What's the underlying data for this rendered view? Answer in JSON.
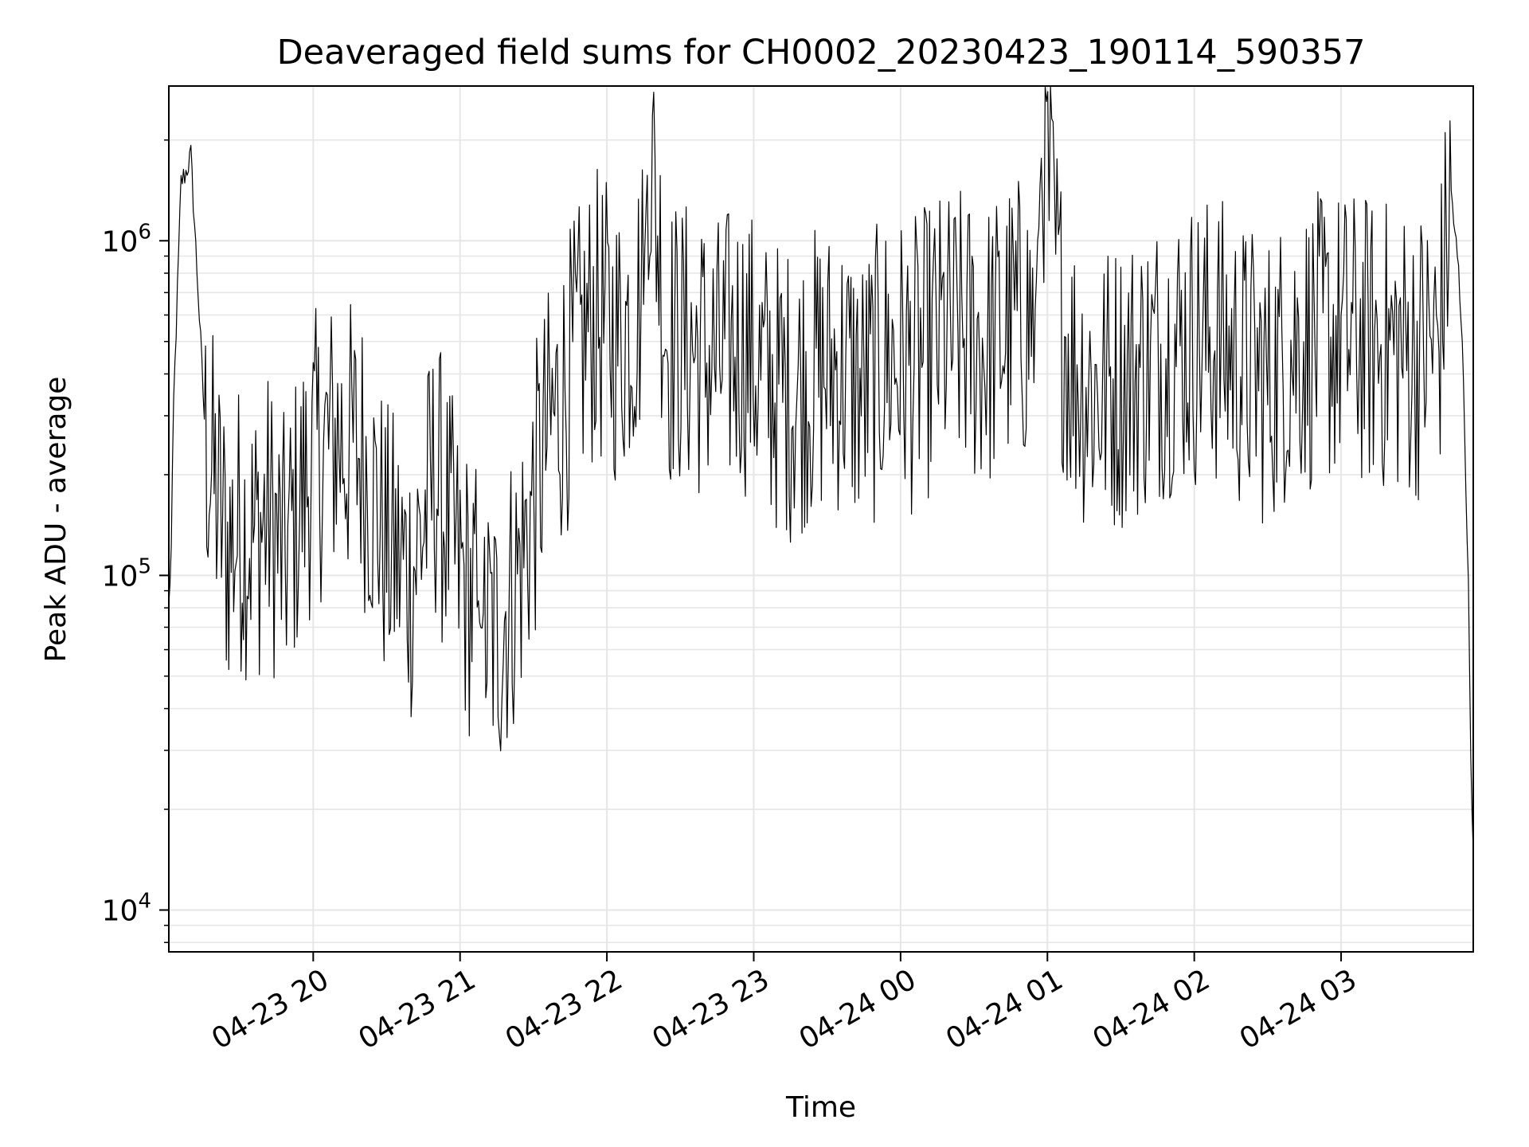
{
  "chart_data": {
    "type": "line",
    "title": "Deaveraged field sums for CH0002_20230423_190114_590357",
    "xlabel": "Time",
    "ylabel": "Peak ADU - average",
    "yscale": "log",
    "ylim": [
      7500,
      2900000
    ],
    "xlim": [
      "2023-04-23 19:01",
      "2023-04-24 03:54"
    ],
    "grid": true,
    "line_color": "#000000",
    "grid_color": "#e6e6e6",
    "x_ticks": [
      {
        "label": "04-23 20",
        "value": "2023-04-23 20:00"
      },
      {
        "label": "04-23 21",
        "value": "2023-04-23 21:00"
      },
      {
        "label": "04-23 22",
        "value": "2023-04-23 22:00"
      },
      {
        "label": "04-23 23",
        "value": "2023-04-23 23:00"
      },
      {
        "label": "04-24 00",
        "value": "2023-04-24 00:00"
      },
      {
        "label": "04-24 01",
        "value": "2023-04-24 01:00"
      },
      {
        "label": "04-24 02",
        "value": "2023-04-24 02:00"
      },
      {
        "label": "04-24 03",
        "value": "2023-04-24 03:00"
      }
    ],
    "y_ticks": [
      {
        "mantissa": "10",
        "exponent": "4",
        "value": 10000
      },
      {
        "mantissa": "10",
        "exponent": "5",
        "value": 100000
      },
      {
        "mantissa": "10",
        "exponent": "6",
        "value": 1000000
      }
    ],
    "series": [
      {
        "x": [
          "2023-04-23 19:01",
          "2023-04-23 19:02",
          "2023-04-23 19:03",
          "2023-04-23 19:05",
          "2023-04-23 19:06",
          "2023-04-23 19:08",
          "2023-04-23 19:10",
          "2023-04-23 19:13",
          "2023-04-23 19:16",
          "2023-04-23 19:20",
          "2023-04-23 19:25",
          "2023-04-23 19:30",
          "2023-04-23 19:36",
          "2023-04-23 19:42",
          "2023-04-23 19:48",
          "2023-04-23 19:55",
          "2023-04-23 20:00",
          "2023-04-23 20:10",
          "2023-04-23 20:20",
          "2023-04-23 20:30",
          "2023-04-23 20:40",
          "2023-04-23 20:50",
          "2023-04-23 21:00",
          "2023-04-23 21:07",
          "2023-04-23 21:10",
          "2023-04-23 21:15",
          "2023-04-23 21:25",
          "2023-04-23 21:35",
          "2023-04-23 21:45",
          "2023-04-23 21:55",
          "2023-04-23 22:05",
          "2023-04-23 22:15",
          "2023-04-23 22:17",
          "2023-04-23 22:25",
          "2023-04-23 22:35",
          "2023-04-23 22:45",
          "2023-04-23 22:55",
          "2023-04-23 23:05",
          "2023-04-23 23:15",
          "2023-04-23 23:25",
          "2023-04-23 23:35",
          "2023-04-23 23:45",
          "2023-04-23 23:55",
          "2023-04-24 00:05",
          "2023-04-24 00:15",
          "2023-04-24 00:25",
          "2023-04-24 00:35",
          "2023-04-24 00:45",
          "2023-04-24 00:55",
          "2023-04-24 00:58",
          "2023-04-24 01:05",
          "2023-04-24 01:10",
          "2023-04-24 01:20",
          "2023-04-24 01:30",
          "2023-04-24 01:40",
          "2023-04-24 01:50",
          "2023-04-24 02:00",
          "2023-04-24 02:10",
          "2023-04-24 02:20",
          "2023-04-24 02:30",
          "2023-04-24 02:40",
          "2023-04-24 02:50",
          "2023-04-24 03:00",
          "2023-04-24 03:10",
          "2023-04-24 03:20",
          "2023-04-24 03:30",
          "2023-04-24 03:40",
          "2023-04-24 03:45",
          "2023-04-24 03:48",
          "2023-04-24 03:50",
          "2023-04-24 03:52",
          "2023-04-24 03:53",
          "2023-04-24 03:54"
        ],
        "y": [
          80000,
          120000,
          330000,
          900000,
          1500000,
          1600000,
          1800000,
          700000,
          250000,
          180000,
          120000,
          140000,
          130000,
          150000,
          110000,
          170000,
          220000,
          260000,
          230000,
          120000,
          100000,
          200000,
          100000,
          80000,
          70000,
          65000,
          110000,
          250000,
          400000,
          600000,
          500000,
          700000,
          2100000,
          500000,
          480000,
          430000,
          500000,
          380000,
          350000,
          400000,
          420000,
          350000,
          450000,
          420000,
          500000,
          520000,
          480000,
          560000,
          600000,
          2200000,
          650000,
          420000,
          350000,
          380000,
          420000,
          480000,
          500000,
          500000,
          420000,
          380000,
          480000,
          500000,
          520000,
          500000,
          480000,
          460000,
          500000,
          1400000,
          800000,
          400000,
          90000,
          30000,
          15000
        ]
      }
    ]
  }
}
